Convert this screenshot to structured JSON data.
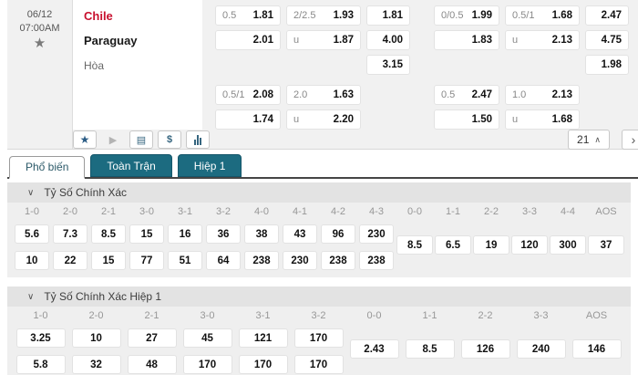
{
  "match": {
    "date": "06/12",
    "time": "07:00AM",
    "home": "Chile",
    "away": "Paraguay",
    "draw": "Hòa",
    "more_count": "21",
    "blocks": [
      {
        "groups": [
          {
            "hdp": [
              {
                "label": "0.5",
                "value": "1.81"
              },
              {
                "label": "",
                "value": "2.01"
              }
            ],
            "ou": [
              {
                "label": "2/2.5",
                "value": "1.93"
              },
              {
                "label": "u",
                "value": "1.87"
              }
            ],
            "x12": [
              "1.81",
              "4.00",
              "3.15"
            ]
          },
          {
            "hdp": [
              {
                "label": "0/0.5",
                "value": "1.99"
              },
              {
                "label": "",
                "value": "1.83"
              }
            ],
            "ou": [
              {
                "label": "0.5/1",
                "value": "1.68"
              },
              {
                "label": "u",
                "value": "2.13"
              }
            ],
            "x12": [
              "2.47",
              "4.75",
              "1.98"
            ]
          }
        ]
      },
      {
        "groups": [
          {
            "hdp": [
              {
                "label": "0.5/1",
                "value": "2.08"
              },
              {
                "label": "",
                "value": "1.74"
              }
            ],
            "ou": [
              {
                "label": "2.0",
                "value": "1.63"
              },
              {
                "label": "u",
                "value": "2.20"
              }
            ]
          },
          {
            "hdp": [
              {
                "label": "0.5",
                "value": "2.47"
              },
              {
                "label": "",
                "value": "1.50"
              }
            ],
            "ou": [
              {
                "label": "1.0",
                "value": "2.13"
              },
              {
                "label": "u",
                "value": "1.68"
              }
            ]
          }
        ]
      }
    ]
  },
  "tabs": [
    {
      "label": "Phổ biến"
    },
    {
      "label": "Toàn Trận"
    },
    {
      "label": "Hiệp 1"
    }
  ],
  "sections": [
    {
      "title": "Tỷ Số Chính Xác",
      "main_headers": [
        "1-0",
        "2-0",
        "2-1",
        "3-0",
        "3-1",
        "3-2",
        "4-0",
        "4-1",
        "4-2",
        "4-3"
      ],
      "row1": [
        "5.6",
        "7.3",
        "8.5",
        "15",
        "16",
        "36",
        "38",
        "43",
        "96",
        "230"
      ],
      "row2": [
        "10",
        "22",
        "15",
        "77",
        "51",
        "64",
        "238",
        "230",
        "238",
        "238"
      ],
      "draw_headers": [
        "0-0",
        "1-1",
        "2-2",
        "3-3",
        "4-4",
        "AOS"
      ],
      "draw_values": [
        "8.5",
        "6.5",
        "19",
        "120",
        "300",
        "37"
      ]
    },
    {
      "title": "Tỷ Số Chính Xác Hiệp 1",
      "main_headers": [
        "1-0",
        "2-0",
        "2-1",
        "3-0",
        "3-1",
        "3-2"
      ],
      "row1": [
        "3.25",
        "10",
        "27",
        "45",
        "121",
        "170"
      ],
      "row2": [
        "5.8",
        "32",
        "48",
        "170",
        "170",
        "170"
      ],
      "draw_headers": [
        "0-0",
        "1-1",
        "2-2",
        "3-3",
        "AOS"
      ],
      "draw_values": [
        "2.43",
        "8.5",
        "126",
        "240",
        "146"
      ]
    }
  ],
  "icons": {
    "favorite": "★",
    "play": "▶",
    "bet_slip": "▤",
    "dollar": "$",
    "chevron_up": "∧",
    "chevron_down": "∨",
    "chevron_right": "›"
  },
  "colors": {
    "accent_teal": "#1c6b80",
    "team_red": "#c8102e",
    "star_blue": "#2b5c85"
  }
}
